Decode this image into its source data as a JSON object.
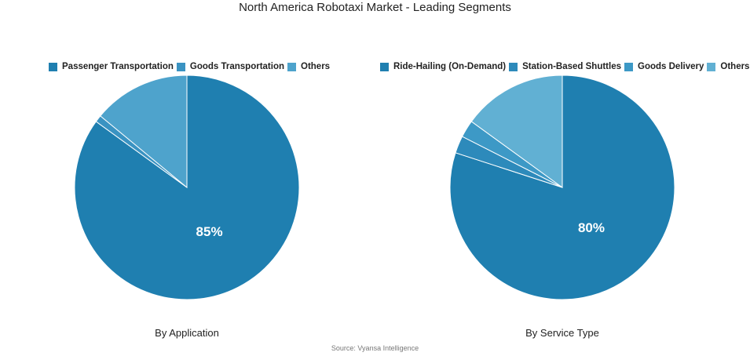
{
  "title": "North America Robotaxi Market - Leading Segments",
  "source": "Source: Vyansa Intelligence",
  "chart_data": [
    {
      "type": "pie",
      "subtitle": "By Application",
      "legend_position": "top",
      "slices": [
        {
          "label": "Passenger Transportation",
          "value": 85,
          "color": "#1f7fb0",
          "show_label": true
        },
        {
          "label": "Goods Transportation",
          "value": 1,
          "color": "#3a93c2",
          "show_label": false
        },
        {
          "label": "Others",
          "value": 14,
          "color": "#4ea3cc",
          "show_label": false
        }
      ],
      "data_label": "85%"
    },
    {
      "type": "pie",
      "subtitle": "By Service Type",
      "legend_position": "top",
      "slices": [
        {
          "label": "Ride-Hailing (On-Demand)",
          "value": 80,
          "color": "#1f7fb0",
          "show_label": true
        },
        {
          "label": "Station-Based Shuttles",
          "value": 2.5,
          "color": "#2d8abb",
          "show_label": false
        },
        {
          "label": "Goods Delivery",
          "value": 2.5,
          "color": "#3d99c6",
          "show_label": false
        },
        {
          "label": "Others",
          "value": 15,
          "color": "#61b0d3",
          "show_label": false
        }
      ],
      "data_label": "80%"
    }
  ]
}
